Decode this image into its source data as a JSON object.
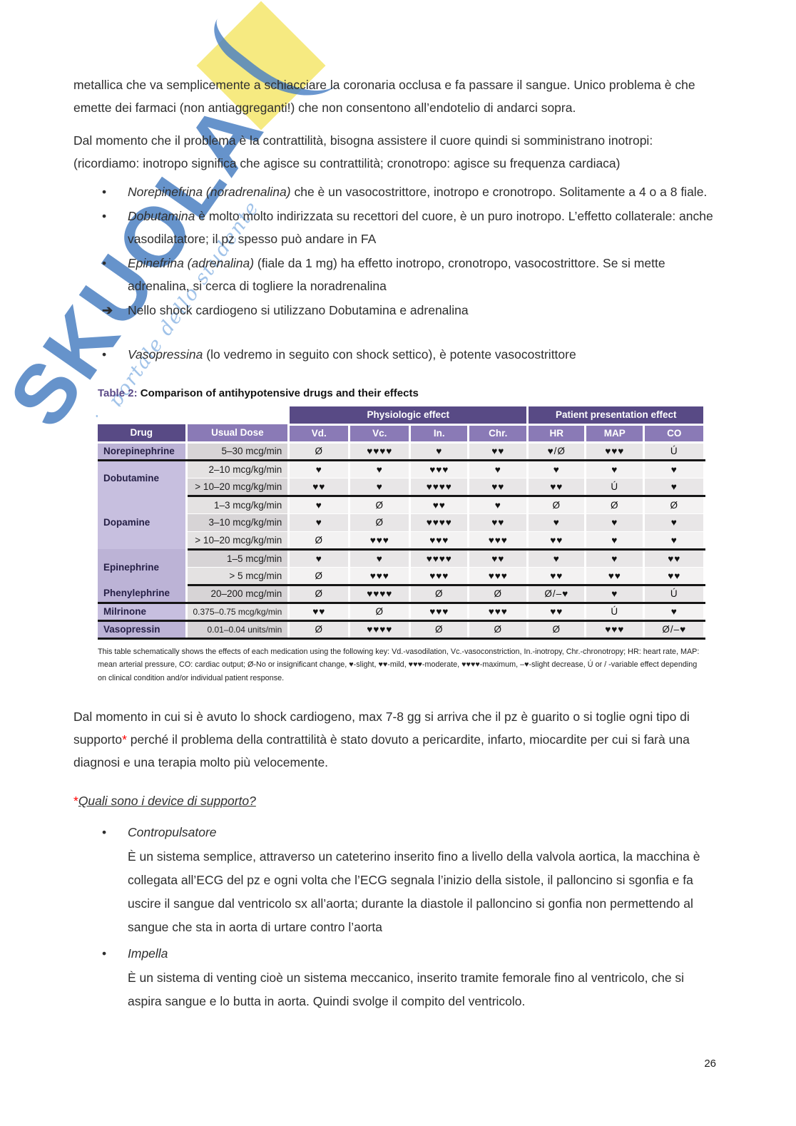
{
  "watermark": {
    "brand": "SKUOLA",
    "tagline": "il portale dello studente",
    "blue": "#4078be",
    "yellow": "#f5e97a"
  },
  "intro": {
    "p1": "metallica che va semplicemente a schiacciare la coronaria occlusa e fa passare il sangue. Unico problema è che emette dei farmaci (non antiaggreganti!) che non consentono all’endotelio di andarci sopra.",
    "p2": "Dal momento che il problema è la contrattilità, bisogna assistere il cuore quindi si somministrano inotropi: (ricordiamo: inotropo significa che agisce su contrattilità; cronotropo: agisce su frequenza cardiaca)"
  },
  "drug_bullets": [
    {
      "marker": "•",
      "lead": "Norepinefrina (noradrenalina)",
      "text": " che è un vasocostrittore, inotropo e cronotropo. Solitamente a 4 o a 8 fiale.",
      "spaced": false
    },
    {
      "marker": "•",
      "lead": "Dobutamina",
      "text": " è molto molto indirizzata su recettori del cuore, è un puro inotropo. L’effetto collaterale: anche vasodilatatore; il pz spesso può andare in FA",
      "spaced": false
    },
    {
      "marker": "•",
      "lead": "Epinefrina (adrenalina)",
      "text": " (fiale da 1 mg) ha effetto inotropo, cronotropo, vasocostrittore. Se si mette adrenalina, si cerca di togliere la noradrenalina",
      "spaced": false
    },
    {
      "marker": "➔",
      "lead": "",
      "text": "Nello shock cardiogeno si utilizzano Dobutamina e adrenalina",
      "spaced": false
    },
    {
      "marker": "•",
      "lead": "Vasopressina",
      "text": " (lo vedremo in seguito con shock settico), è potente vasocostrittore",
      "spaced": true
    }
  ],
  "table": {
    "caption_label": "Table 2:",
    "caption_text": " Comparison of antihypotensive drugs and their effects",
    "span_headers": [
      "Physiologic effect",
      "Patient presentation effect"
    ],
    "columns": [
      "Drug",
      "Usual Dose",
      "Vd.",
      "Vc.",
      "In.",
      "Chr.",
      "HR",
      "MAP",
      "CO"
    ],
    "groups": [
      {
        "drug": "Norepinephrine",
        "rows": [
          {
            "dose": "5–30 mcg/min",
            "effects": [
              "Ø",
              "♥♥♥♥",
              "♥",
              "♥♥",
              "♥/Ø",
              "♥♥♥",
              "Ú"
            ]
          }
        ]
      },
      {
        "drug": "Dobutamine",
        "rows": [
          {
            "dose": "2–10 mcg/kg/min",
            "effects": [
              "♥",
              "♥",
              "♥♥♥",
              "♥",
              "♥",
              "♥",
              "♥"
            ]
          },
          {
            "dose": "> 10–20 mcg/kg/min",
            "effects": [
              "♥♥",
              "♥",
              "♥♥♥♥",
              "♥♥",
              "♥♥",
              "Ú",
              "♥"
            ]
          }
        ]
      },
      {
        "drug": "Dopamine",
        "rows": [
          {
            "dose": "1–3 mcg/kg/min",
            "effects": [
              "♥",
              "Ø",
              "♥♥",
              "♥",
              "Ø",
              "Ø",
              "Ø"
            ]
          },
          {
            "dose": "3–10 mcg/kg/min",
            "effects": [
              "♥",
              "Ø",
              "♥♥♥♥",
              "♥♥",
              "♥",
              "♥",
              "♥"
            ]
          },
          {
            "dose": "> 10–20 mcg/kg/min",
            "effects": [
              "Ø",
              "♥♥♥",
              "♥♥♥",
              "♥♥♥",
              "♥♥",
              "♥",
              "♥"
            ]
          }
        ]
      },
      {
        "drug": "Epinephrine",
        "rows": [
          {
            "dose": "1–5 mcg/min",
            "effects": [
              "♥",
              "♥",
              "♥♥♥♥",
              "♥♥",
              "♥",
              "♥",
              "♥♥"
            ]
          },
          {
            "dose": "> 5 mcg/min",
            "effects": [
              "Ø",
              "♥♥♥",
              "♥♥♥",
              "♥♥♥",
              "♥♥",
              "♥♥",
              "♥♥"
            ]
          }
        ]
      },
      {
        "drug": "Phenylephrine",
        "rows": [
          {
            "dose": "20–200 mcg/min",
            "effects": [
              "Ø",
              "♥♥♥♥",
              "Ø",
              "Ø",
              "Ø/–♥",
              "♥",
              "Ú"
            ]
          }
        ]
      },
      {
        "drug": "Milrinone",
        "rows": [
          {
            "dose": "0.375–0.75 mcg/kg/min",
            "effects": [
              "♥♥",
              "Ø",
              "♥♥♥",
              "♥♥♥",
              "♥♥",
              "Ú",
              "♥"
            ]
          }
        ]
      },
      {
        "drug": "Vasopressin",
        "rows": [
          {
            "dose": "0.01–0.04 units/min",
            "effects": [
              "Ø",
              "♥♥♥♥",
              "Ø",
              "Ø",
              "Ø",
              "♥♥♥",
              "Ø/–♥"
            ]
          }
        ]
      }
    ],
    "footnote": "This table schematically shows the effects of each medication using the following key: Vd.-vasodilation, Vc.-vasoconstriction, In.-inotropy, Chr.-chronotropy; HR: heart rate, MAP: mean arterial pressure, CO: cardiac output; Ø-No or insignificant change, ♥-slight, ♥♥-mild, ♥♥♥-moderate, ♥♥♥♥-maximum, –♥-slight decrease, Ú or / -variable effect depending on clinical condition and/or individual patient response."
  },
  "outro": {
    "p1_pre": "Dal momento in cui si è avuto lo shock cardiogeno, max 7-8 gg si arriva che il pz è guarito o si toglie ogni tipo di supporto",
    "asterisk": "*",
    "p1_post": " perché il problema della contrattilità è stato dovuto a pericardite, infarto, miocardite per cui si farà una diagnosi e una terapia molto più velocemente.",
    "question": "Quali sono i device di supporto?"
  },
  "device_bullets": [
    {
      "marker": "•",
      "title": "Contropulsatore",
      "description": "È un sistema semplice, attraverso un cateterino inserito fino a livello della valvola aortica, la macchina è collegata all’ECG del pz e ogni volta che l’ECG segnala l’inizio della sistole, il palloncino si sgonfia e fa uscire il sangue dal ventricolo sx all’aorta; durante la diastole il palloncino si gonfia non permettendo al sangue che sta in aorta di urtare contro l’aorta"
    },
    {
      "marker": "•",
      "title": "Impella",
      "description": "È un sistema di venting cioè un sistema meccanico, inserito tramite femorale fino al ventricolo, che si aspira sangue e lo butta in aorta. Quindi svolge il compito del ventricolo."
    }
  ],
  "page_number": "26",
  "colors": {
    "header_dark": "#584a85",
    "header_mid": "#8a7ab6",
    "drug_cell_light": "#c7bfdf",
    "drug_cell_dark": "#bcb3d6",
    "asterisk_red": "#ff0000",
    "caption_purple": "#5b4a87"
  }
}
